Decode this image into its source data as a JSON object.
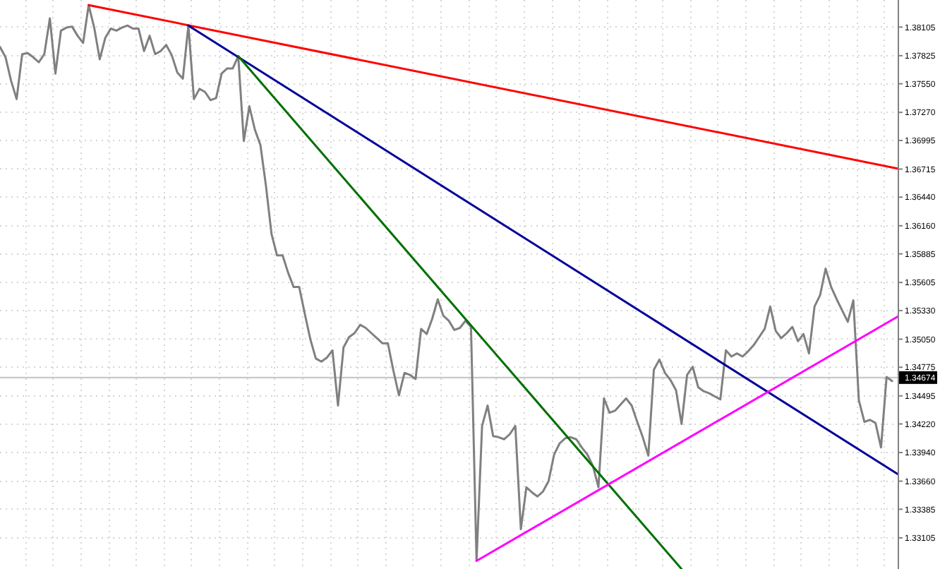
{
  "chart_data": {
    "type": "line",
    "categories": [
      null,
      null,
      null,
      null,
      null,
      null,
      null,
      null,
      null,
      null,
      null,
      null,
      null,
      null,
      null,
      null,
      null,
      null,
      null,
      null,
      null,
      null,
      null,
      null,
      null,
      null,
      null,
      null,
      null,
      null,
      null,
      null,
      null,
      null,
      null,
      null,
      null,
      null,
      null,
      null,
      null,
      null,
      null,
      null,
      null,
      null,
      null,
      null,
      null,
      null,
      null,
      null,
      null,
      null,
      null,
      null,
      null,
      null,
      null,
      null,
      null,
      null,
      null,
      null,
      null,
      null,
      null,
      null,
      null,
      null,
      null,
      null,
      null,
      null,
      null,
      null,
      null,
      null,
      null,
      null,
      null,
      null,
      null,
      null,
      null,
      null,
      null,
      null,
      null,
      null,
      null,
      null,
      null,
      null,
      null,
      null,
      null,
      null,
      null,
      null,
      null,
      null,
      null,
      null,
      null,
      null,
      null,
      null,
      null,
      null,
      null,
      null,
      null,
      null,
      null,
      null,
      null,
      null,
      null,
      null,
      null,
      null,
      null,
      null,
      null,
      null,
      null,
      null,
      null,
      null,
      null,
      null,
      null,
      null,
      null,
      null,
      null,
      null,
      null,
      null,
      null,
      null,
      null,
      null,
      null,
      null,
      null,
      null,
      null,
      null,
      null,
      null,
      null,
      null,
      null,
      null,
      null,
      null,
      null,
      null,
      null,
      null,
      null
    ],
    "ylim": [
      1.328,
      1.3837
    ],
    "yticks": [
      {
        "value": 1.33105,
        "label": "1.33105"
      },
      {
        "value": 1.33385,
        "label": "1.33385"
      },
      {
        "value": 1.3366,
        "label": "1.33660"
      },
      {
        "value": 1.3394,
        "label": "1.33940"
      },
      {
        "value": 1.3422,
        "label": "1.34220"
      },
      {
        "value": 1.34495,
        "label": "1.34495"
      },
      {
        "value": 1.34775,
        "label": "1.34775"
      },
      {
        "value": 1.3505,
        "label": "1.35050"
      },
      {
        "value": 1.3533,
        "label": "1.35330"
      },
      {
        "value": 1.35605,
        "label": "1.35605"
      },
      {
        "value": 1.35885,
        "label": "1.35885"
      },
      {
        "value": 1.3616,
        "label": "1.36160"
      },
      {
        "value": 1.3644,
        "label": "1.36440"
      },
      {
        "value": 1.36715,
        "label": "1.36715"
      },
      {
        "value": 1.36995,
        "label": "1.36995"
      },
      {
        "value": 1.3727,
        "label": "1.37270"
      },
      {
        "value": 1.3755,
        "label": "1.37550"
      },
      {
        "value": 1.37825,
        "label": "1.37825"
      },
      {
        "value": 1.38105,
        "label": "1.38105"
      }
    ],
    "tick_labels": "y",
    "grid": true,
    "ref_lines": [
      {
        "axis": "y",
        "value": 1.34674,
        "label": "1.34674",
        "color": "#c8c8c8"
      }
    ],
    "series": [
      {
        "color": "#808080",
        "values": [
          1.3791,
          1.3781,
          1.3758,
          1.374,
          1.3784,
          1.3785,
          1.3781,
          1.3776,
          1.3784,
          1.3819,
          1.3765,
          1.3807,
          1.381,
          1.3811,
          1.3802,
          1.3795,
          1.3832,
          1.381,
          1.3779,
          1.38,
          1.3809,
          1.3807,
          1.381,
          1.3812,
          1.3809,
          1.3809,
          1.3787,
          1.3802,
          1.3784,
          1.3787,
          1.3793,
          1.3783,
          1.3766,
          1.376,
          1.3812,
          1.374,
          1.375,
          1.3747,
          1.3739,
          1.3741,
          1.3765,
          1.377,
          1.377,
          1.3782,
          1.3699,
          1.3733,
          1.371,
          1.3695,
          1.3655,
          1.3608,
          1.3587,
          1.3587,
          1.357,
          1.3556,
          1.3556,
          1.353,
          1.3505,
          1.3486,
          1.3483,
          1.3487,
          1.3494,
          1.344,
          1.3497,
          1.3507,
          1.3511,
          1.3519,
          1.3516,
          1.3511,
          1.3506,
          1.3501,
          1.3501,
          1.3474,
          1.345,
          1.3472,
          1.347,
          1.3466,
          1.3515,
          1.351,
          1.3525,
          1.3544,
          1.3528,
          1.3523,
          1.3514,
          1.3516,
          1.3523,
          1.3517,
          1.3288,
          1.342,
          1.344,
          1.341,
          1.3409,
          1.3407,
          1.3412,
          1.342,
          1.3319,
          1.336,
          1.3355,
          1.3351,
          1.3356,
          1.3366,
          1.3392,
          1.3403,
          1.3408,
          1.3409,
          1.3407,
          1.3399,
          1.3392,
          1.3381,
          1.336,
          1.3447,
          1.3433,
          1.3435,
          1.3441,
          1.3447,
          1.344,
          1.3424,
          1.3409,
          1.3391,
          1.3475,
          1.3485,
          1.3472,
          1.3465,
          1.3455,
          1.3422,
          1.347,
          1.3478,
          1.3458,
          1.3454,
          1.3452,
          1.3449,
          1.3446,
          1.3494,
          1.3488,
          1.3491,
          1.3488,
          1.3493,
          1.3499,
          1.3507,
          1.3515,
          1.3537,
          1.3513,
          1.3506,
          1.3511,
          1.3517,
          1.3503,
          1.351,
          1.3491,
          1.3537,
          1.3548,
          1.3574,
          1.3556,
          1.3544,
          1.3533,
          1.3522,
          1.3543,
          1.3445,
          1.3424,
          1.3426,
          1.3423,
          1.3399,
          1.3468,
          1.3464,
          null
        ]
      },
      {
        "color": "#ff0000",
        "values": [
          null,
          null,
          null,
          null,
          null,
          null,
          null,
          null,
          null,
          null,
          null,
          null,
          null,
          null,
          null,
          null,
          1.3832,
          null,
          null,
          null,
          null,
          null,
          null,
          null,
          null,
          null,
          null,
          null,
          null,
          null,
          null,
          null,
          null,
          null,
          null,
          null,
          null,
          null,
          null,
          null,
          null,
          null,
          null,
          null,
          null,
          null,
          null,
          null,
          null,
          null,
          null,
          null,
          null,
          null,
          null,
          null,
          null,
          null,
          null,
          null,
          null,
          null,
          null,
          null,
          null,
          null,
          null,
          null,
          null,
          null,
          null,
          null,
          null,
          null,
          null,
          null,
          null,
          null,
          null,
          null,
          null,
          null,
          null,
          null,
          null,
          null,
          null,
          null,
          null,
          null,
          null,
          null,
          null,
          null,
          null,
          null,
          null,
          null,
          null,
          null,
          null,
          null,
          null,
          null,
          null,
          null,
          null,
          null,
          null,
          null,
          null,
          null,
          null,
          null,
          null,
          null,
          null,
          null,
          null,
          null,
          null,
          null,
          null,
          null,
          null,
          null,
          null,
          null,
          null,
          null,
          null,
          null,
          null,
          null,
          null,
          null,
          null,
          null,
          null,
          null,
          null,
          null,
          null,
          null,
          null,
          null,
          null,
          null,
          null,
          null,
          null,
          null,
          null,
          null,
          null,
          null,
          null,
          null,
          null,
          null,
          null,
          null,
          1.3672
        ]
      },
      {
        "color": "#000099",
        "values": [
          null,
          null,
          null,
          null,
          null,
          null,
          null,
          null,
          null,
          null,
          null,
          null,
          null,
          null,
          null,
          null,
          null,
          null,
          null,
          null,
          null,
          null,
          null,
          null,
          null,
          null,
          null,
          null,
          null,
          null,
          null,
          null,
          null,
          null,
          1.3812,
          null,
          null,
          null,
          null,
          null,
          null,
          null,
          null,
          null,
          null,
          null,
          null,
          null,
          null,
          null,
          null,
          null,
          null,
          null,
          null,
          null,
          null,
          null,
          null,
          null,
          null,
          null,
          null,
          null,
          null,
          null,
          null,
          null,
          null,
          null,
          null,
          null,
          null,
          null,
          null,
          null,
          null,
          null,
          null,
          null,
          null,
          null,
          null,
          null,
          null,
          null,
          null,
          null,
          null,
          null,
          null,
          null,
          null,
          null,
          null,
          null,
          null,
          null,
          null,
          null,
          null,
          null,
          null,
          null,
          null,
          null,
          null,
          null,
          null,
          null,
          null,
          null,
          null,
          null,
          null,
          null,
          null,
          null,
          null,
          null,
          null,
          null,
          null,
          null,
          null,
          null,
          null,
          null,
          null,
          null,
          null,
          null,
          null,
          null,
          null,
          null,
          null,
          null,
          null,
          null,
          null,
          null,
          null,
          null,
          null,
          null,
          null,
          null,
          null,
          null,
          null,
          null,
          null,
          null,
          null,
          null,
          null,
          null,
          null,
          null,
          null,
          null,
          1.3373
        ]
      },
      {
        "color": "#007000",
        "values": [
          null,
          null,
          null,
          null,
          null,
          null,
          null,
          null,
          null,
          null,
          null,
          null,
          null,
          null,
          null,
          null,
          null,
          null,
          null,
          null,
          null,
          null,
          null,
          null,
          null,
          null,
          null,
          null,
          null,
          null,
          null,
          null,
          null,
          null,
          null,
          null,
          null,
          null,
          null,
          null,
          null,
          null,
          null,
          1.3782,
          null,
          null,
          null,
          null,
          null,
          null,
          null,
          null,
          null,
          null,
          null,
          null,
          null,
          null,
          null,
          null,
          null,
          null,
          null,
          null,
          null,
          null,
          null,
          null,
          null,
          null,
          null,
          null,
          null,
          null,
          null,
          null,
          null,
          null,
          null,
          null,
          null,
          null,
          null,
          null,
          null,
          null,
          null,
          null,
          null,
          null,
          null,
          null,
          null,
          null,
          null,
          null,
          null,
          null,
          null,
          null,
          null,
          null,
          null,
          null,
          null,
          null,
          null,
          null,
          null,
          null,
          null,
          null,
          null,
          null,
          null,
          null,
          null,
          null,
          null,
          null,
          null,
          null,
          null,
          1.328,
          null,
          null,
          null,
          null,
          null,
          null,
          null,
          null,
          null,
          null,
          null,
          null,
          null,
          null,
          null,
          null,
          null,
          null,
          null,
          null,
          null,
          null,
          null,
          null,
          null,
          null,
          null,
          null,
          null,
          null,
          null,
          null,
          null,
          null,
          null,
          null,
          null,
          null,
          null
        ]
      },
      {
        "color": "#ff00ff",
        "values": [
          null,
          null,
          null,
          null,
          null,
          null,
          null,
          null,
          null,
          null,
          null,
          null,
          null,
          null,
          null,
          null,
          null,
          null,
          null,
          null,
          null,
          null,
          null,
          null,
          null,
          null,
          null,
          null,
          null,
          null,
          null,
          null,
          null,
          null,
          null,
          null,
          null,
          null,
          null,
          null,
          null,
          null,
          null,
          null,
          null,
          null,
          null,
          null,
          null,
          null,
          null,
          null,
          null,
          null,
          null,
          null,
          null,
          null,
          null,
          null,
          null,
          null,
          null,
          null,
          null,
          null,
          null,
          null,
          null,
          null,
          null,
          null,
          null,
          null,
          null,
          null,
          null,
          null,
          null,
          null,
          null,
          null,
          null,
          null,
          null,
          null,
          1.3288,
          null,
          null,
          null,
          null,
          null,
          null,
          null,
          null,
          null,
          null,
          null,
          null,
          null,
          null,
          null,
          null,
          null,
          null,
          null,
          null,
          null,
          null,
          null,
          null,
          null,
          null,
          null,
          null,
          null,
          null,
          null,
          null,
          null,
          null,
          null,
          null,
          null,
          null,
          null,
          null,
          null,
          null,
          null,
          null,
          null,
          null,
          null,
          null,
          null,
          null,
          null,
          null,
          null,
          null,
          null,
          null,
          null,
          null,
          null,
          null,
          null,
          null,
          null,
          null,
          null,
          null,
          null,
          null,
          null,
          null,
          null,
          null,
          null,
          null,
          null,
          1.3527
        ]
      }
    ]
  }
}
